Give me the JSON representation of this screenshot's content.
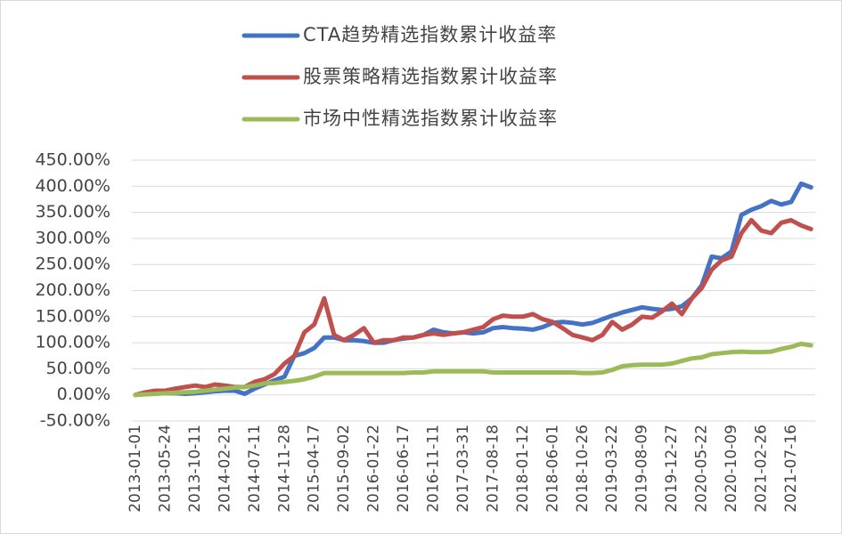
{
  "chart_data": {
    "type": "line",
    "categories": [
      "2013-01-01",
      null,
      null,
      "2013-05-24",
      null,
      null,
      "2013-10-11",
      null,
      null,
      "2014-02-21",
      null,
      null,
      "2014-07-11",
      null,
      null,
      "2014-11-28",
      null,
      null,
      "2015-04-17",
      null,
      null,
      "2015-09-02",
      null,
      null,
      "2016-01-22",
      null,
      null,
      "2016-06-17",
      null,
      null,
      "2016-11-11",
      null,
      null,
      "2017-03-31",
      null,
      null,
      "2017-08-18",
      null,
      null,
      "2018-01-12",
      null,
      null,
      "2018-06-01",
      null,
      null,
      "2018-10-26",
      null,
      null,
      "2019-03-22",
      null,
      null,
      "2019-08-09",
      null,
      null,
      "2019-12-27",
      null,
      null,
      "2020-05-22",
      null,
      null,
      "2020-10-09",
      null,
      null,
      "2021-02-26",
      null,
      null,
      "2021-07-16",
      null,
      null
    ],
    "series": [
      {
        "name": "CTA趋势精选指数累计收益率",
        "color": "#4472c4",
        "values": [
          0,
          2,
          3,
          3,
          3,
          2,
          3,
          5,
          7,
          8,
          8,
          2,
          12,
          20,
          28,
          35,
          75,
          80,
          90,
          110,
          110,
          105,
          105,
          103,
          100,
          100,
          105,
          108,
          110,
          115,
          125,
          120,
          118,
          120,
          118,
          120,
          128,
          130,
          128,
          127,
          125,
          130,
          138,
          140,
          138,
          135,
          138,
          145,
          152,
          158,
          163,
          168,
          165,
          163,
          165,
          170,
          185,
          210,
          265,
          262,
          275,
          345,
          355,
          362,
          372,
          365,
          370,
          405,
          398
        ]
      },
      {
        "name": "股票策略精选指数累计收益率",
        "color": "#c0504d",
        "values": [
          0,
          5,
          8,
          8,
          12,
          15,
          18,
          15,
          20,
          18,
          15,
          15,
          25,
          30,
          40,
          60,
          75,
          120,
          135,
          185,
          115,
          105,
          115,
          128,
          100,
          105,
          105,
          110,
          110,
          115,
          118,
          115,
          118,
          120,
          125,
          130,
          145,
          152,
          150,
          150,
          155,
          145,
          140,
          128,
          115,
          110,
          105,
          115,
          140,
          125,
          135,
          150,
          148,
          160,
          175,
          155,
          185,
          205,
          240,
          258,
          265,
          310,
          335,
          315,
          310,
          330,
          335,
          325,
          318
        ]
      },
      {
        "name": "市场中性精选指数累计收益率",
        "color": "#9bbb59",
        "values": [
          0,
          1,
          2,
          3,
          4,
          5,
          6,
          8,
          10,
          12,
          14,
          15,
          18,
          22,
          23,
          25,
          27,
          30,
          35,
          42,
          42,
          42,
          42,
          42,
          42,
          42,
          42,
          42,
          43,
          43,
          45,
          45,
          45,
          45,
          45,
          45,
          43,
          43,
          43,
          43,
          43,
          43,
          43,
          43,
          43,
          42,
          42,
          43,
          48,
          55,
          57,
          58,
          58,
          58,
          60,
          65,
          70,
          72,
          78,
          80,
          82,
          83,
          82,
          82,
          83,
          88,
          92,
          98,
          95
        ]
      }
    ],
    "ylim": [
      -50,
      450
    ],
    "yticks": [
      {
        "value": -50,
        "label": "-50.00%"
      },
      {
        "value": 0,
        "label": "0.00%"
      },
      {
        "value": 50,
        "label": "50.00%"
      },
      {
        "value": 100,
        "label": "100.00%"
      },
      {
        "value": 150,
        "label": "150.00%"
      },
      {
        "value": 200,
        "label": "200.00%"
      },
      {
        "value": 250,
        "label": "250.00%"
      },
      {
        "value": 300,
        "label": "300.00%"
      },
      {
        "value": 350,
        "label": "350.00%"
      },
      {
        "value": 400,
        "label": "400.00%"
      },
      {
        "value": 450,
        "label": "450.00%"
      }
    ],
    "grid": true
  }
}
